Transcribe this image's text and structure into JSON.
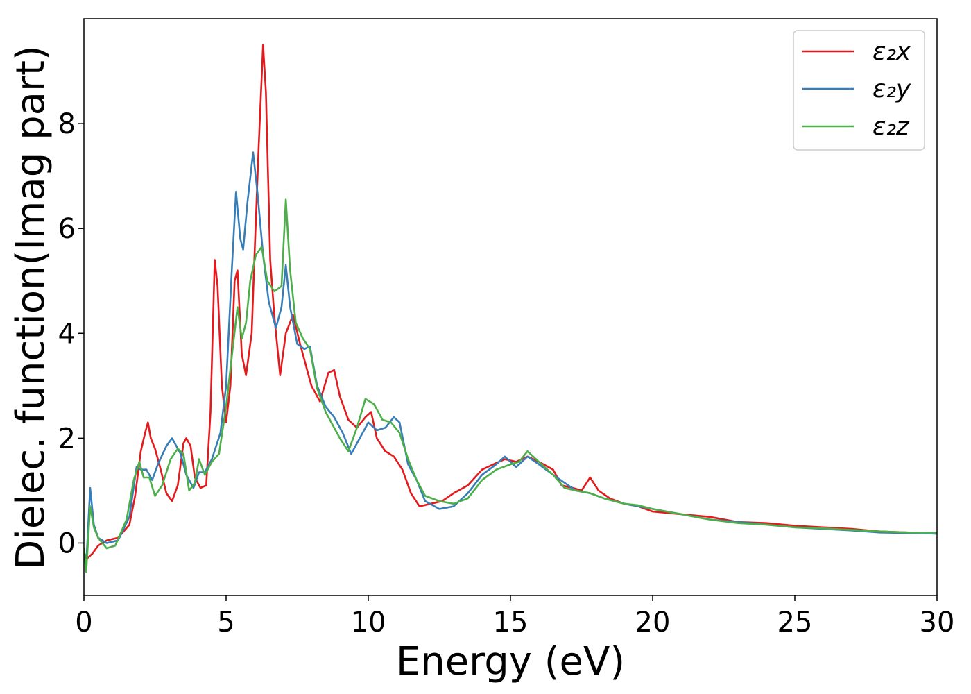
{
  "chart_data": {
    "type": "line",
    "xlabel": "Energy (eV)",
    "ylabel": "Dielec. function(Imag part)",
    "xlim": [
      0,
      30
    ],
    "ylim": [
      -1.0,
      10.0
    ],
    "x_ticks": [
      0,
      5,
      10,
      15,
      20,
      25,
      30
    ],
    "y_ticks": [
      0,
      2,
      4,
      6,
      8
    ],
    "grid": false,
    "legend_position": "top-right",
    "series": [
      {
        "name": "ε₂x",
        "color": "#e41a1c",
        "points": [
          [
            0.0,
            -0.2
          ],
          [
            0.1,
            -0.3
          ],
          [
            0.3,
            -0.2
          ],
          [
            0.5,
            -0.05
          ],
          [
            0.8,
            0.05
          ],
          [
            1.2,
            0.1
          ],
          [
            1.6,
            0.35
          ],
          [
            1.8,
            0.9
          ],
          [
            2.0,
            1.75
          ],
          [
            2.15,
            2.1
          ],
          [
            2.25,
            2.3
          ],
          [
            2.35,
            2.0
          ],
          [
            2.5,
            1.8
          ],
          [
            2.7,
            1.4
          ],
          [
            2.9,
            0.95
          ],
          [
            3.1,
            0.8
          ],
          [
            3.3,
            1.1
          ],
          [
            3.5,
            1.9
          ],
          [
            3.6,
            2.0
          ],
          [
            3.75,
            1.85
          ],
          [
            3.9,
            1.25
          ],
          [
            4.1,
            1.05
          ],
          [
            4.3,
            1.1
          ],
          [
            4.45,
            2.5
          ],
          [
            4.6,
            5.4
          ],
          [
            4.7,
            4.9
          ],
          [
            4.85,
            3.0
          ],
          [
            5.0,
            2.3
          ],
          [
            5.15,
            3.0
          ],
          [
            5.3,
            5.0
          ],
          [
            5.4,
            5.2
          ],
          [
            5.55,
            3.6
          ],
          [
            5.7,
            3.2
          ],
          [
            5.9,
            4.0
          ],
          [
            6.0,
            5.5
          ],
          [
            6.15,
            7.6
          ],
          [
            6.3,
            9.5
          ],
          [
            6.4,
            8.6
          ],
          [
            6.55,
            5.4
          ],
          [
            6.7,
            4.3
          ],
          [
            6.9,
            3.2
          ],
          [
            7.1,
            4.0
          ],
          [
            7.35,
            4.35
          ],
          [
            7.6,
            3.8
          ],
          [
            7.8,
            3.4
          ],
          [
            8.0,
            3.0
          ],
          [
            8.3,
            2.7
          ],
          [
            8.6,
            3.25
          ],
          [
            8.8,
            3.3
          ],
          [
            9.0,
            2.8
          ],
          [
            9.3,
            2.35
          ],
          [
            9.6,
            2.2
          ],
          [
            9.9,
            2.4
          ],
          [
            10.1,
            2.5
          ],
          [
            10.3,
            2.0
          ],
          [
            10.6,
            1.75
          ],
          [
            10.9,
            1.65
          ],
          [
            11.2,
            1.4
          ],
          [
            11.5,
            0.95
          ],
          [
            11.8,
            0.7
          ],
          [
            12.2,
            0.75
          ],
          [
            12.6,
            0.8
          ],
          [
            13.0,
            0.95
          ],
          [
            13.5,
            1.1
          ],
          [
            14.0,
            1.4
          ],
          [
            14.4,
            1.5
          ],
          [
            14.8,
            1.6
          ],
          [
            15.2,
            1.55
          ],
          [
            15.6,
            1.65
          ],
          [
            16.0,
            1.55
          ],
          [
            16.5,
            1.4
          ],
          [
            16.8,
            1.1
          ],
          [
            17.2,
            1.05
          ],
          [
            17.5,
            1.0
          ],
          [
            17.8,
            1.25
          ],
          [
            18.1,
            1.0
          ],
          [
            18.5,
            0.85
          ],
          [
            19.0,
            0.75
          ],
          [
            19.5,
            0.7
          ],
          [
            20.0,
            0.6
          ],
          [
            21.0,
            0.55
          ],
          [
            22.0,
            0.5
          ],
          [
            23.0,
            0.4
          ],
          [
            24.0,
            0.38
          ],
          [
            25.0,
            0.33
          ],
          [
            26.0,
            0.3
          ],
          [
            27.0,
            0.27
          ],
          [
            28.0,
            0.22
          ],
          [
            29.0,
            0.2
          ],
          [
            30.0,
            0.18
          ]
        ]
      },
      {
        "name": "ε₂y",
        "color": "#377eb8",
        "points": [
          [
            0.0,
            -0.3
          ],
          [
            0.1,
            -0.2
          ],
          [
            0.22,
            1.05
          ],
          [
            0.35,
            0.35
          ],
          [
            0.5,
            0.1
          ],
          [
            0.8,
            0.0
          ],
          [
            1.2,
            0.05
          ],
          [
            1.6,
            0.5
          ],
          [
            1.85,
            1.45
          ],
          [
            2.0,
            1.4
          ],
          [
            2.2,
            1.4
          ],
          [
            2.4,
            1.2
          ],
          [
            2.6,
            1.5
          ],
          [
            2.9,
            1.85
          ],
          [
            3.1,
            2.0
          ],
          [
            3.4,
            1.7
          ],
          [
            3.6,
            1.3
          ],
          [
            3.85,
            1.05
          ],
          [
            4.05,
            1.35
          ],
          [
            4.25,
            1.35
          ],
          [
            4.5,
            1.6
          ],
          [
            4.8,
            2.1
          ],
          [
            5.0,
            3.0
          ],
          [
            5.2,
            5.2
          ],
          [
            5.35,
            6.7
          ],
          [
            5.5,
            5.8
          ],
          [
            5.6,
            5.6
          ],
          [
            5.75,
            6.5
          ],
          [
            5.95,
            7.45
          ],
          [
            6.1,
            6.7
          ],
          [
            6.3,
            5.5
          ],
          [
            6.5,
            4.6
          ],
          [
            6.75,
            4.1
          ],
          [
            6.95,
            4.5
          ],
          [
            7.1,
            5.3
          ],
          [
            7.25,
            4.5
          ],
          [
            7.5,
            3.8
          ],
          [
            7.75,
            3.7
          ],
          [
            7.95,
            3.75
          ],
          [
            8.2,
            3.0
          ],
          [
            8.5,
            2.6
          ],
          [
            8.8,
            2.4
          ],
          [
            9.1,
            2.1
          ],
          [
            9.4,
            1.7
          ],
          [
            9.7,
            2.0
          ],
          [
            10.0,
            2.3
          ],
          [
            10.3,
            2.15
          ],
          [
            10.6,
            2.2
          ],
          [
            10.9,
            2.4
          ],
          [
            11.1,
            2.3
          ],
          [
            11.4,
            1.5
          ],
          [
            11.7,
            1.2
          ],
          [
            12.0,
            0.8
          ],
          [
            12.5,
            0.65
          ],
          [
            13.0,
            0.7
          ],
          [
            13.5,
            0.95
          ],
          [
            14.0,
            1.3
          ],
          [
            14.5,
            1.5
          ],
          [
            14.8,
            1.65
          ],
          [
            15.2,
            1.45
          ],
          [
            15.6,
            1.65
          ],
          [
            16.0,
            1.5
          ],
          [
            16.5,
            1.3
          ],
          [
            16.9,
            1.15
          ],
          [
            17.3,
            1.0
          ],
          [
            17.8,
            0.95
          ],
          [
            18.3,
            0.85
          ],
          [
            19.0,
            0.75
          ],
          [
            19.5,
            0.7
          ],
          [
            20.0,
            0.65
          ],
          [
            21.0,
            0.55
          ],
          [
            22.0,
            0.45
          ],
          [
            23.0,
            0.4
          ],
          [
            24.0,
            0.35
          ],
          [
            25.0,
            0.3
          ],
          [
            26.0,
            0.27
          ],
          [
            27.0,
            0.24
          ],
          [
            28.0,
            0.2
          ],
          [
            29.0,
            0.19
          ],
          [
            30.0,
            0.18
          ]
        ]
      },
      {
        "name": "ε₂z",
        "color": "#4daf4a",
        "points": [
          [
            0.0,
            -0.1
          ],
          [
            0.08,
            -0.55
          ],
          [
            0.22,
            0.7
          ],
          [
            0.35,
            0.3
          ],
          [
            0.5,
            0.1
          ],
          [
            0.8,
            -0.1
          ],
          [
            1.1,
            -0.05
          ],
          [
            1.5,
            0.45
          ],
          [
            1.75,
            1.2
          ],
          [
            1.95,
            1.55
          ],
          [
            2.1,
            1.25
          ],
          [
            2.3,
            1.25
          ],
          [
            2.5,
            0.9
          ],
          [
            2.75,
            1.1
          ],
          [
            3.05,
            1.6
          ],
          [
            3.3,
            1.8
          ],
          [
            3.5,
            1.7
          ],
          [
            3.7,
            1.0
          ],
          [
            3.9,
            1.15
          ],
          [
            4.05,
            1.6
          ],
          [
            4.25,
            1.3
          ],
          [
            4.5,
            1.55
          ],
          [
            4.75,
            1.7
          ],
          [
            5.0,
            2.6
          ],
          [
            5.25,
            3.8
          ],
          [
            5.4,
            4.5
          ],
          [
            5.55,
            3.9
          ],
          [
            5.7,
            4.2
          ],
          [
            5.85,
            5.0
          ],
          [
            6.05,
            5.5
          ],
          [
            6.25,
            5.65
          ],
          [
            6.45,
            5.0
          ],
          [
            6.7,
            4.8
          ],
          [
            6.95,
            4.9
          ],
          [
            7.1,
            6.55
          ],
          [
            7.25,
            5.2
          ],
          [
            7.45,
            4.2
          ],
          [
            7.7,
            3.9
          ],
          [
            7.95,
            3.7
          ],
          [
            8.2,
            2.95
          ],
          [
            8.5,
            2.5
          ],
          [
            8.8,
            2.2
          ],
          [
            9.0,
            2.0
          ],
          [
            9.3,
            1.75
          ],
          [
            9.6,
            2.2
          ],
          [
            9.9,
            2.75
          ],
          [
            10.2,
            2.65
          ],
          [
            10.5,
            2.35
          ],
          [
            10.8,
            2.3
          ],
          [
            11.1,
            2.1
          ],
          [
            11.4,
            1.6
          ],
          [
            11.7,
            1.2
          ],
          [
            12.0,
            0.9
          ],
          [
            12.5,
            0.8
          ],
          [
            13.0,
            0.75
          ],
          [
            13.5,
            0.85
          ],
          [
            14.0,
            1.2
          ],
          [
            14.5,
            1.4
          ],
          [
            15.0,
            1.5
          ],
          [
            15.3,
            1.55
          ],
          [
            15.6,
            1.75
          ],
          [
            16.0,
            1.55
          ],
          [
            16.5,
            1.3
          ],
          [
            16.9,
            1.05
          ],
          [
            17.3,
            1.0
          ],
          [
            17.8,
            0.95
          ],
          [
            18.3,
            0.85
          ],
          [
            19.0,
            0.75
          ],
          [
            19.5,
            0.72
          ],
          [
            20.0,
            0.65
          ],
          [
            21.0,
            0.55
          ],
          [
            22.0,
            0.45
          ],
          [
            23.0,
            0.38
          ],
          [
            24.0,
            0.35
          ],
          [
            25.0,
            0.3
          ],
          [
            26.0,
            0.28
          ],
          [
            27.0,
            0.25
          ],
          [
            28.0,
            0.22
          ],
          [
            29.0,
            0.2
          ],
          [
            30.0,
            0.19
          ]
        ]
      }
    ]
  }
}
